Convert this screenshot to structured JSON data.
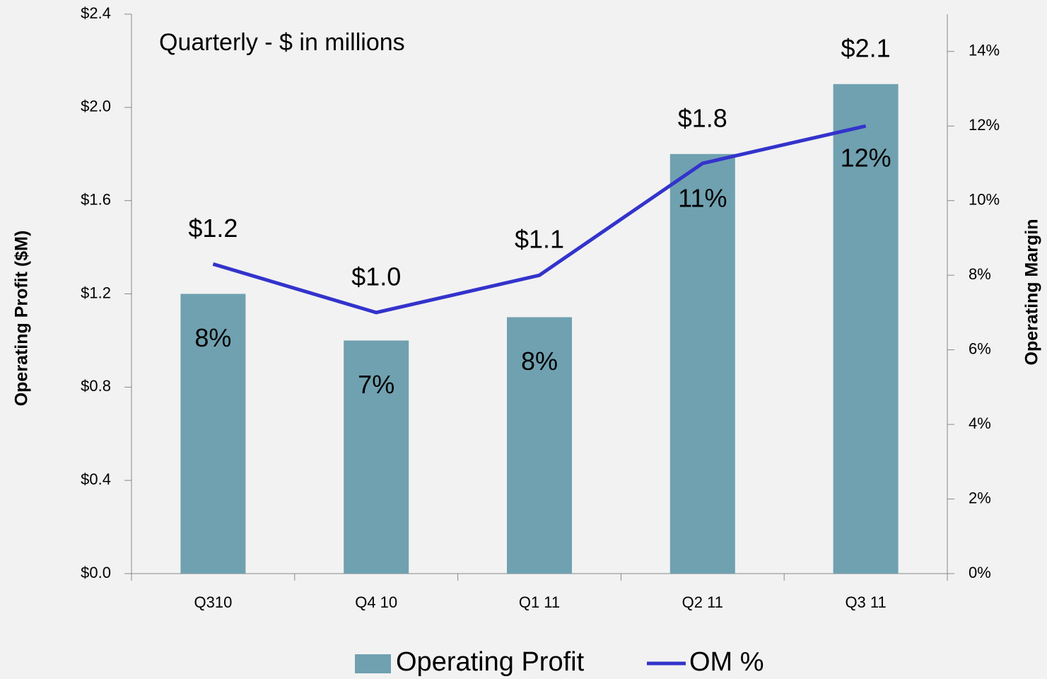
{
  "chart_data": {
    "type": "bar",
    "annotation": "Quarterly - $ in millions",
    "ylabel": "Operating Profit ($M)",
    "y2label": "Operating Margin",
    "categories": [
      "Q310",
      "Q4 10",
      "Q1 11",
      "Q2 11",
      "Q3 11"
    ],
    "series": [
      {
        "name": "Operating Profit",
        "type": "bar",
        "color": "#70a1b0",
        "values": [
          1.2,
          1.0,
          1.1,
          1.8,
          2.1
        ],
        "value_labels": [
          "$1.2",
          "$1.0",
          "$1.1",
          "$1.8",
          "$2.1"
        ]
      },
      {
        "name": "OM %",
        "type": "line",
        "axis": "y2",
        "color": "#3333cc",
        "values": [
          8.3,
          7.0,
          8.0,
          11.0,
          12.0
        ],
        "value_labels": [
          "8%",
          "7%",
          "8%",
          "11%",
          "12%"
        ]
      }
    ],
    "ylim": [
      0,
      2.4
    ],
    "yticks": [
      {
        "value": 0,
        "label": "$0.0"
      },
      {
        "value": 0.4,
        "label": "$0.4"
      },
      {
        "value": 0.8,
        "label": "$0.8"
      },
      {
        "value": 1.2,
        "label": "$1.2"
      },
      {
        "value": 1.6,
        "label": "$1.6"
      },
      {
        "value": 2.0,
        "label": "$2.0"
      },
      {
        "value": 2.4,
        "label": "$2.4"
      }
    ],
    "y2lim": [
      0,
      15
    ],
    "y2ticks": [
      {
        "value": 0,
        "label": "0%"
      },
      {
        "value": 2,
        "label": "2%"
      },
      {
        "value": 4,
        "label": "4%"
      },
      {
        "value": 6,
        "label": "6%"
      },
      {
        "value": 8,
        "label": "8%"
      },
      {
        "value": 10,
        "label": "10%"
      },
      {
        "value": 12,
        "label": "12%"
      },
      {
        "value": 14,
        "label": "14%"
      }
    ],
    "legend": "bottom"
  }
}
